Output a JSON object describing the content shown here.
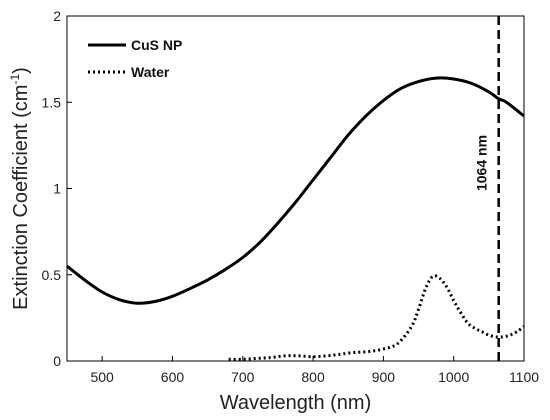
{
  "chart_data": {
    "type": "line",
    "xlabel": "Wavelength (nm)",
    "ylabel_main": "Extinction Coefficient (cm",
    "ylabel_sup": "-1",
    "ylabel_end": ")",
    "xlim": [
      450,
      1100
    ],
    "ylim": [
      0,
      2
    ],
    "x_ticks": [
      "500",
      "600",
      "700",
      "800",
      "900",
      "1000",
      "1100"
    ],
    "y_ticks": [
      "0",
      "0.5",
      "1",
      "1.5",
      "2"
    ],
    "grid": false,
    "legend_position": "top-left",
    "series": [
      {
        "name": "CuS NP",
        "style": "solid",
        "color": "#000000",
        "x": [
          450,
          475,
          500,
          525,
          550,
          575,
          600,
          625,
          650,
          675,
          700,
          725,
          750,
          775,
          800,
          825,
          850,
          875,
          900,
          925,
          950,
          975,
          1000,
          1025,
          1050,
          1064,
          1075,
          1100
        ],
        "y": [
          0.55,
          0.47,
          0.4,
          0.355,
          0.335,
          0.345,
          0.375,
          0.42,
          0.47,
          0.53,
          0.6,
          0.69,
          0.8,
          0.92,
          1.05,
          1.18,
          1.31,
          1.42,
          1.51,
          1.58,
          1.62,
          1.64,
          1.635,
          1.61,
          1.56,
          1.52,
          1.5,
          1.42
        ]
      },
      {
        "name": "Water",
        "style": "dotted",
        "color": "#000000",
        "x": [
          680,
          700,
          720,
          740,
          760,
          780,
          800,
          820,
          840,
          860,
          880,
          900,
          920,
          940,
          950,
          960,
          970,
          980,
          990,
          1000,
          1010,
          1020,
          1030,
          1040,
          1050,
          1060,
          1070,
          1080,
          1090,
          1100
        ],
        "y": [
          0.01,
          0.01,
          0.015,
          0.02,
          0.03,
          0.03,
          0.025,
          0.03,
          0.04,
          0.05,
          0.055,
          0.07,
          0.1,
          0.2,
          0.3,
          0.42,
          0.49,
          0.48,
          0.43,
          0.35,
          0.28,
          0.22,
          0.19,
          0.17,
          0.15,
          0.14,
          0.14,
          0.15,
          0.17,
          0.2
        ]
      }
    ],
    "vline": {
      "x": 1064,
      "label": "1064 nm",
      "style": "dashed"
    }
  }
}
